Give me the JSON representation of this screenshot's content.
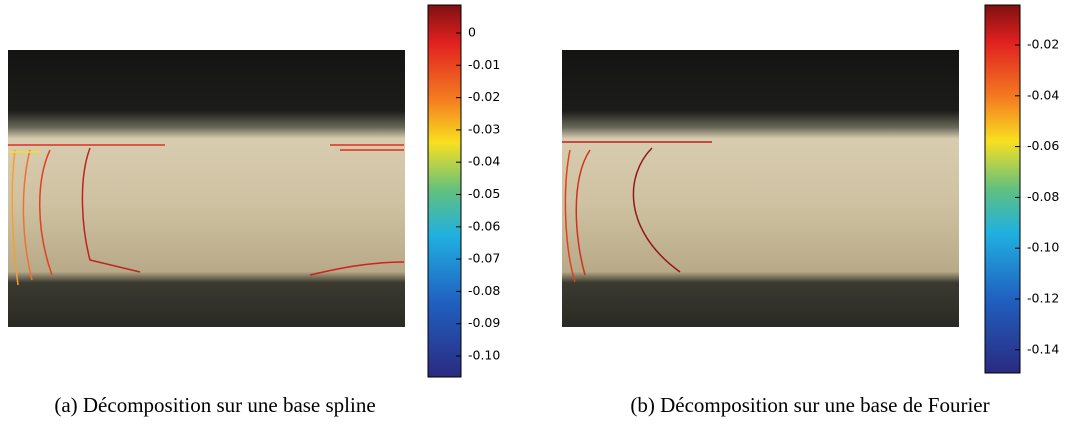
{
  "panels": [
    {
      "caption": "(a) Décomposition sur une base spline",
      "colorbar": {
        "ticks": [
          "0",
          "-0.01",
          "-0.02",
          "-0.03",
          "-0.04",
          "-0.05",
          "-0.06",
          "-0.07",
          "-0.08",
          "-0.09",
          "-0.10"
        ]
      }
    },
    {
      "caption": "(b) Décomposition sur une base de Fourier",
      "colorbar": {
        "ticks": [
          "-0.02",
          "-0.04",
          "-0.06",
          "-0.08",
          "-0.10",
          "-0.12",
          "-0.14"
        ]
      }
    }
  ]
}
